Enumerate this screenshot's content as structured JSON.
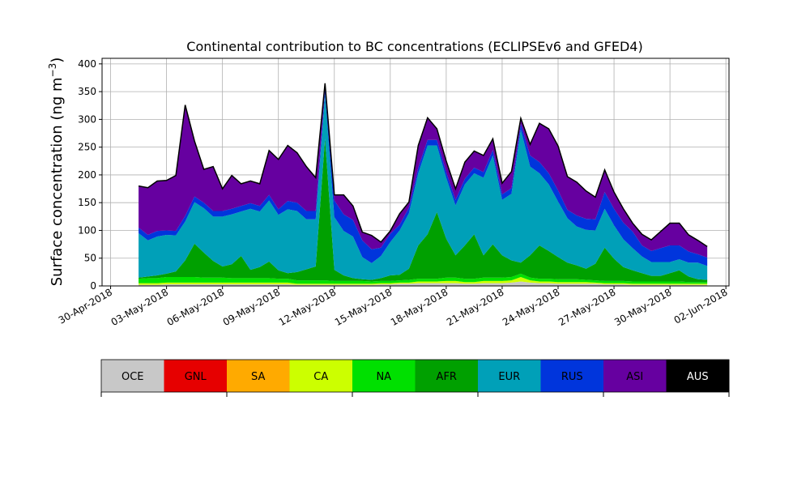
{
  "chart_data": {
    "type": "area",
    "stacked": true,
    "title": "Continental contribution to BC concentrations (ECLIPSEv6 and GFED4)",
    "ylabel": "Surface concentration (ng m",
    "ylabel_exponent": "−3",
    "ylabel_suffix": ")",
    "xlabel": "",
    "ylim": [
      0,
      410
    ],
    "yticks": [
      0,
      50,
      100,
      150,
      200,
      250,
      300,
      350,
      400
    ],
    "xlim": [
      "2018-04-29T13:00",
      "2018-06-02T04:00"
    ],
    "xticks": [
      "2018-04-30",
      "2018-05-03",
      "2018-05-06",
      "2018-05-09",
      "2018-05-12",
      "2018-05-15",
      "2018-05-18",
      "2018-05-21",
      "2018-05-24",
      "2018-05-27",
      "2018-05-30",
      "2018-06-02"
    ],
    "xtick_labels": [
      "30-Apr-2018",
      "03-May-2018",
      "06-May-2018",
      "09-May-2018",
      "12-May-2018",
      "15-May-2018",
      "18-May-2018",
      "21-May-2018",
      "24-May-2018",
      "27-May-2018",
      "30-May-2018",
      "02-Jun-2018"
    ],
    "grid": true,
    "x": [
      "2018-05-01T12:00",
      "2018-05-02T00:00",
      "2018-05-02T12:00",
      "2018-05-03T00:00",
      "2018-05-03T12:00",
      "2018-05-04T00:00",
      "2018-05-04T12:00",
      "2018-05-05T00:00",
      "2018-05-05T12:00",
      "2018-05-06T00:00",
      "2018-05-06T12:00",
      "2018-05-07T00:00",
      "2018-05-07T12:00",
      "2018-05-08T00:00",
      "2018-05-08T12:00",
      "2018-05-09T00:00",
      "2018-05-09T12:00",
      "2018-05-10T00:00",
      "2018-05-10T12:00",
      "2018-05-11T00:00",
      "2018-05-11T12:00",
      "2018-05-12T00:00",
      "2018-05-12T12:00",
      "2018-05-13T00:00",
      "2018-05-13T12:00",
      "2018-05-14T00:00",
      "2018-05-14T12:00",
      "2018-05-15T00:00",
      "2018-05-15T12:00",
      "2018-05-16T00:00",
      "2018-05-16T12:00",
      "2018-05-17T00:00",
      "2018-05-17T12:00",
      "2018-05-18T00:00",
      "2018-05-18T12:00",
      "2018-05-19T00:00",
      "2018-05-19T12:00",
      "2018-05-20T00:00",
      "2018-05-20T12:00",
      "2018-05-21T00:00",
      "2018-05-21T12:00",
      "2018-05-22T00:00",
      "2018-05-22T12:00",
      "2018-05-23T00:00",
      "2018-05-23T12:00",
      "2018-05-24T00:00",
      "2018-05-24T12:00",
      "2018-05-25T00:00",
      "2018-05-25T12:00",
      "2018-05-26T00:00",
      "2018-05-26T12:00",
      "2018-05-27T00:00",
      "2018-05-27T12:00",
      "2018-05-28T00:00",
      "2018-05-28T12:00",
      "2018-05-29T00:00",
      "2018-05-29T12:00",
      "2018-05-30T00:00",
      "2018-05-30T12:00",
      "2018-05-31T00:00",
      "2018-05-31T12:00",
      "2018-06-01T00:00"
    ],
    "series": [
      {
        "name": "OCE",
        "color": "#c8c8c8",
        "values": [
          2,
          2,
          2,
          3,
          3,
          3,
          3,
          3,
          3,
          3,
          3,
          3,
          3,
          3,
          3,
          3,
          3,
          2,
          2,
          2,
          2,
          2,
          2,
          2,
          2,
          2,
          3,
          3,
          4,
          4,
          5,
          5,
          5,
          5,
          5,
          4,
          4,
          5,
          5,
          5,
          6,
          8,
          6,
          5,
          5,
          4,
          4,
          4,
          4,
          4,
          3,
          3,
          3,
          2,
          2,
          2,
          2,
          2,
          2,
          2,
          2,
          2
        ]
      },
      {
        "name": "GNL",
        "color": "#e60000",
        "values": [
          0,
          0,
          0,
          0,
          0,
          0,
          0,
          0,
          0,
          0,
          0,
          0,
          0,
          0,
          0,
          0,
          0,
          0,
          0,
          0,
          0,
          0,
          0,
          0,
          0,
          0,
          0,
          0,
          0,
          0,
          0,
          0,
          0,
          0,
          0,
          0,
          0,
          0,
          0,
          0,
          0,
          0,
          0,
          0,
          0,
          0,
          0,
          0,
          0,
          0,
          0,
          0,
          0,
          0,
          0,
          0,
          0,
          0,
          0,
          0,
          0,
          0
        ]
      },
      {
        "name": "SA",
        "color": "#ffaa00",
        "values": [
          0,
          0,
          0,
          0,
          0,
          0,
          0,
          0,
          0,
          0,
          0,
          0,
          0,
          0,
          0,
          0,
          0,
          0,
          0,
          0,
          0,
          0,
          0,
          0,
          0,
          0,
          0,
          0,
          0,
          0,
          0,
          0,
          0,
          0,
          0,
          0,
          0,
          0,
          0,
          0,
          0,
          0,
          0,
          0,
          0,
          0,
          0,
          0,
          0,
          0,
          0,
          0,
          0,
          0,
          0,
          0,
          0,
          0,
          0,
          0,
          0,
          0
        ]
      },
      {
        "name": "CA",
        "color": "#ccff00",
        "values": [
          3,
          3,
          3,
          3,
          3,
          3,
          3,
          3,
          3,
          3,
          3,
          3,
          3,
          3,
          3,
          3,
          3,
          2,
          2,
          2,
          2,
          2,
          2,
          2,
          2,
          2,
          2,
          2,
          2,
          2,
          3,
          3,
          3,
          4,
          4,
          3,
          3,
          4,
          4,
          4,
          4,
          8,
          4,
          3,
          3,
          3,
          3,
          3,
          3,
          2,
          2,
          2,
          2,
          2,
          2,
          2,
          2,
          2,
          2,
          2,
          2,
          2
        ]
      },
      {
        "name": "NA",
        "color": "#00e000",
        "values": [
          8,
          9,
          9,
          10,
          10,
          10,
          10,
          9,
          9,
          9,
          8,
          8,
          8,
          8,
          8,
          7,
          7,
          6,
          6,
          6,
          6,
          5,
          5,
          5,
          5,
          4,
          4,
          4,
          4,
          5,
          5,
          5,
          5,
          6,
          6,
          6,
          6,
          6,
          6,
          6,
          6,
          6,
          5,
          5,
          5,
          5,
          5,
          5,
          4,
          4,
          4,
          4,
          4,
          4,
          4,
          4,
          4,
          4,
          4,
          3,
          3,
          3
        ]
      },
      {
        "name": "AFR",
        "color": "#00a000",
        "values": [
          2,
          3,
          5,
          6,
          10,
          30,
          60,
          45,
          30,
          20,
          25,
          40,
          15,
          20,
          30,
          15,
          10,
          15,
          20,
          25,
          255,
          20,
          10,
          5,
          3,
          3,
          5,
          10,
          10,
          20,
          60,
          80,
          120,
          70,
          40,
          60,
          80,
          40,
          60,
          40,
          30,
          20,
          40,
          60,
          50,
          40,
          30,
          25,
          20,
          30,
          60,
          40,
          25,
          20,
          15,
          10,
          10,
          15,
          20,
          10,
          5,
          4
        ]
      },
      {
        "name": "EUR",
        "color": "#00a0b8",
        "values": [
          80,
          65,
          70,
          70,
          65,
          70,
          75,
          80,
          80,
          90,
          90,
          80,
          110,
          100,
          110,
          100,
          115,
          110,
          90,
          85,
          80,
          95,
          80,
          75,
          40,
          30,
          40,
          60,
          80,
          100,
          130,
          160,
          120,
          110,
          90,
          110,
          110,
          140,
          160,
          100,
          120,
          240,
          160,
          130,
          120,
          100,
          80,
          70,
          70,
          60,
          70,
          60,
          50,
          40,
          30,
          25,
          25,
          20,
          20,
          25,
          30,
          25
        ]
      },
      {
        "name": "RUS",
        "color": "#0035dc",
        "values": [
          10,
          10,
          10,
          8,
          8,
          10,
          10,
          10,
          10,
          10,
          10,
          10,
          10,
          10,
          10,
          10,
          15,
          15,
          15,
          15,
          10,
          30,
          30,
          30,
          30,
          25,
          15,
          15,
          10,
          10,
          10,
          10,
          10,
          10,
          10,
          10,
          10,
          10,
          10,
          10,
          10,
          10,
          20,
          20,
          20,
          20,
          15,
          20,
          20,
          20,
          30,
          30,
          30,
          30,
          20,
          20,
          25,
          30,
          25,
          20,
          15,
          15
        ]
      },
      {
        "name": "ASI",
        "color": "#6600a0",
        "values": [
          75,
          85,
          90,
          90,
          100,
          200,
          100,
          60,
          80,
          40,
          60,
          40,
          40,
          40,
          80,
          90,
          100,
          90,
          80,
          60,
          10,
          10,
          35,
          25,
          15,
          25,
          10,
          5,
          20,
          10,
          40,
          40,
          20,
          20,
          20,
          30,
          30,
          30,
          20,
          20,
          30,
          10,
          20,
          70,
          80,
          80,
          60,
          60,
          50,
          40,
          40,
          30,
          25,
          15,
          20,
          20,
          30,
          40,
          40,
          30,
          25,
          20
        ]
      },
      {
        "name": "AUS",
        "color": "#000000",
        "values": [
          0,
          0,
          0,
          0,
          0,
          0,
          0,
          0,
          0,
          0,
          0,
          0,
          0,
          0,
          0,
          0,
          0,
          0,
          0,
          0,
          0,
          0,
          0,
          0,
          0,
          0,
          0,
          0,
          0,
          0,
          0,
          0,
          0,
          0,
          0,
          0,
          0,
          0,
          0,
          0,
          0,
          0,
          0,
          0,
          0,
          0,
          0,
          0,
          0,
          0,
          0,
          0,
          0,
          0,
          0,
          0,
          0,
          0,
          0,
          0,
          0,
          0
        ]
      }
    ],
    "legend": {
      "placement": "bottom",
      "entries": [
        "OCE",
        "GNL",
        "SA",
        "CA",
        "NA",
        "AFR",
        "EUR",
        "RUS",
        "ASI",
        "AUS"
      ],
      "colors": [
        "#c8c8c8",
        "#e60000",
        "#ffaa00",
        "#ccff00",
        "#00e000",
        "#00a000",
        "#00a0b8",
        "#0035dc",
        "#6600a0",
        "#000000"
      ],
      "label_colors": [
        "#000000",
        "#000000",
        "#000000",
        "#000000",
        "#000000",
        "#000000",
        "#000000",
        "#000000",
        "#000000",
        "#ffffff"
      ]
    }
  }
}
